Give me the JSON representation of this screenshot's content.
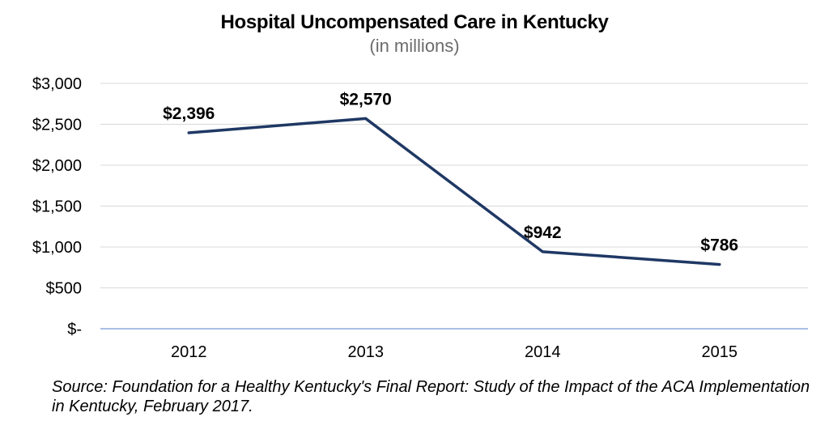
{
  "chart_data": {
    "type": "line",
    "title": "Hospital Uncompensated Care in Kentucky",
    "subtitle": "(in millions)",
    "categories": [
      "2012",
      "2013",
      "2014",
      "2015"
    ],
    "series": [
      {
        "values": [
          2396,
          2570,
          942,
          786
        ],
        "labels": [
          "$2,396",
          "$2,570",
          "$942",
          "$786"
        ]
      }
    ],
    "ylim": [
      0,
      3000
    ],
    "yticks": [
      0,
      500,
      1000,
      1500,
      2000,
      2500,
      3000
    ],
    "ytick_labels": [
      "$-",
      "$500",
      "$1,000",
      "$1,500",
      "$2,000",
      "$2,500",
      "$3,000"
    ],
    "grid": true,
    "line_color": "#1f3864",
    "grid_color": "#d9d9d9",
    "axis_color": "#8eaadb"
  },
  "source": "Source: Foundation for a Healthy Kentucky's Final Report: Study of the Impact of the ACA Implementation in Kentucky, February 2017."
}
